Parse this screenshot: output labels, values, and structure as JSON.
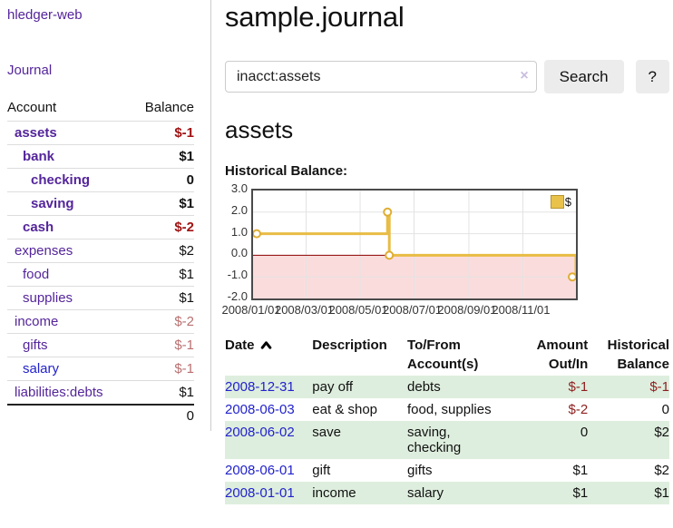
{
  "app": {
    "brand": "hledger-web",
    "nav_journal": "Journal"
  },
  "sidebar": {
    "columns": {
      "account": "Account",
      "balance": "Balance"
    },
    "accounts": [
      {
        "name": "assets",
        "balance": "$-1",
        "indent": 0,
        "bold": true,
        "balance_class": "neg-bold"
      },
      {
        "name": "bank",
        "balance": "$1",
        "indent": 1,
        "bold": true,
        "balance_class": "b"
      },
      {
        "name": "checking",
        "balance": "0",
        "indent": 2,
        "bold": true,
        "balance_class": "b"
      },
      {
        "name": "saving",
        "balance": "$1",
        "indent": 2,
        "bold": true,
        "balance_class": "b"
      },
      {
        "name": "cash",
        "balance": "$-2",
        "indent": 1,
        "bold": true,
        "balance_class": "neg-bold"
      },
      {
        "name": "expenses",
        "balance": "$2",
        "indent": 0,
        "bold": false,
        "balance_class": ""
      },
      {
        "name": "food",
        "balance": "$1",
        "indent": 1,
        "bold": false,
        "balance_class": ""
      },
      {
        "name": "supplies",
        "balance": "$1",
        "indent": 1,
        "bold": false,
        "balance_class": ""
      },
      {
        "name": "income",
        "balance": "$-2",
        "indent": 0,
        "bold": false,
        "balance_class": "neg-light"
      },
      {
        "name": "gifts",
        "balance": "$-1",
        "indent": 1,
        "bold": false,
        "balance_class": "neg-light"
      },
      {
        "name": "salary",
        "balance": "$-1",
        "indent": 1,
        "bold": false,
        "balance_class": "neg-light",
        "link_class": "blue"
      },
      {
        "name": "liabilities:debts",
        "balance": "$1",
        "indent": 0,
        "bold": false,
        "balance_class": ""
      }
    ],
    "total": "0"
  },
  "header": {
    "title": "sample.journal"
  },
  "search": {
    "value": "inacct:assets",
    "clear_icon": "×",
    "search_button": "Search",
    "help_button": "?"
  },
  "account_page": {
    "heading": "assets",
    "chart_label": "Historical Balance:"
  },
  "chart_data": {
    "type": "line",
    "title": "Historical Balance",
    "step": true,
    "series": [
      {
        "name": "$",
        "points": [
          [
            "2008-01-01",
            1
          ],
          [
            "2008-06-01",
            2
          ],
          [
            "2008-06-02",
            2
          ],
          [
            "2008-06-03",
            0
          ],
          [
            "2008-12-31",
            -1
          ]
        ]
      }
    ],
    "markers": [
      [
        "2008-01-01",
        1
      ],
      [
        "2008-06-01",
        2
      ],
      [
        "2008-06-03",
        0
      ],
      [
        "2008-12-31",
        -1
      ]
    ],
    "xrange": [
      "2008-01-01",
      "2008-12-31"
    ],
    "ylim": [
      -2,
      3
    ],
    "yticks": [
      3.0,
      2.0,
      1.0,
      0.0,
      -1.0,
      -2.0
    ],
    "ytick_labels": [
      "3.0",
      "2.0",
      "1.0",
      "0.0",
      "-1.0",
      "-2.0"
    ],
    "xticks": [
      "2008-01-01",
      "2008-03-01",
      "2008-05-01",
      "2008-07-01",
      "2008-09-01",
      "2008-11-01"
    ],
    "xtick_labels": [
      "2008/01/01",
      "2008/03/01",
      "2008/05/01",
      "2008/07/01",
      "2008/09/01",
      "2008/11/01"
    ],
    "legend_label": "$",
    "legend_position": "top-right",
    "grid": true,
    "colors": {
      "line": "#e8bc45",
      "marker_stroke": "#dfae33",
      "marker_fill": "#ffffff",
      "zero_line": "#8b0000",
      "negative_region": "#fbdcdc",
      "gridline": "#e3e3e3",
      "plot_border": "#4a4a4a"
    }
  },
  "register": {
    "headers": {
      "date": "Date",
      "description": "Description",
      "accounts": "To/From\nAccount(s)",
      "amount": "Amount\nOut/In",
      "balance": "Historical\nBalance"
    },
    "sort": {
      "column": "date",
      "direction": "ascending"
    },
    "rows": [
      {
        "date": "2008-12-31",
        "description": "pay off",
        "accounts": "debts",
        "amount": "$-1",
        "balance": "$-1",
        "amount_neg": true,
        "balance_neg": true,
        "shaded": true
      },
      {
        "date": "2008-06-03",
        "description": "eat & shop",
        "accounts": "food, supplies",
        "amount": "$-2",
        "balance": "0",
        "amount_neg": true,
        "balance_neg": false,
        "shaded": false
      },
      {
        "date": "2008-06-02",
        "description": "save",
        "accounts": "saving,\nchecking",
        "amount": "0",
        "balance": "$2",
        "amount_neg": false,
        "balance_neg": false,
        "shaded": true
      },
      {
        "date": "2008-06-01",
        "description": "gift",
        "accounts": "gifts",
        "amount": "$1",
        "balance": "$2",
        "amount_neg": false,
        "balance_neg": false,
        "shaded": false
      },
      {
        "date": "2008-01-01",
        "description": "income",
        "accounts": "salary",
        "amount": "$1",
        "balance": "$1",
        "amount_neg": false,
        "balance_neg": false,
        "shaded": true
      }
    ]
  }
}
